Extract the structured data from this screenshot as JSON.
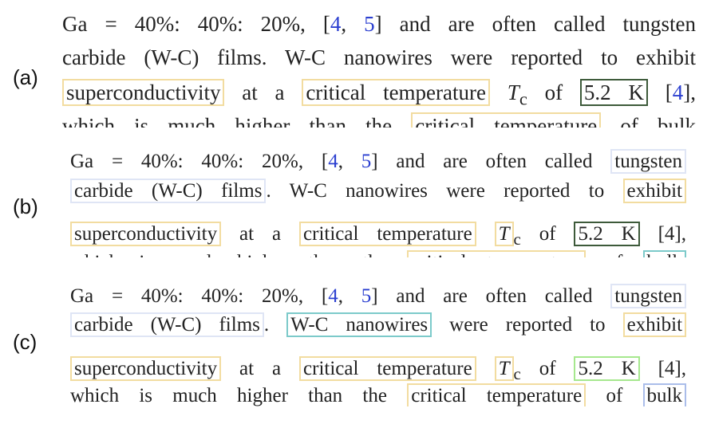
{
  "panels": [
    {
      "label": "(a)",
      "lines": [
        [
          {
            "text": "Ga = 40%: 40%: 20%, ["
          },
          {
            "text": "4",
            "color": "#2b3fd0"
          },
          {
            "text": ", "
          },
          {
            "text": "5",
            "color": "#2b3fd0"
          },
          {
            "text": "] and are often called tungsten"
          }
        ],
        [
          {
            "text": "carbide (W-C) films. W-C nanowires were reported to exhibit"
          }
        ],
        [
          {
            "text": "superconductivity",
            "box": "#f2dca0"
          },
          {
            "text": " at a "
          },
          {
            "text": "critical temperature",
            "box": "#f2dca0"
          },
          {
            "text": " "
          },
          {
            "text": "T",
            "italic": true
          },
          {
            "text": "c",
            "sub": true
          },
          {
            "text": " of "
          },
          {
            "text": "5.2 K",
            "box": "#3d5a3a"
          },
          {
            "text": " ["
          },
          {
            "text": "4",
            "color": "#2b3fd0"
          },
          {
            "text": "],"
          }
        ],
        [
          {
            "text": "which is much higher than the "
          },
          {
            "text": "critical temperature",
            "box": "#f2dca0"
          },
          {
            "text": " of bulk"
          }
        ]
      ]
    },
    {
      "label": "(b)",
      "lines": [
        [
          {
            "text": "Ga = 40%: 40%: 20%, ["
          },
          {
            "text": "4",
            "color": "#2b3fd0"
          },
          {
            "text": ", "
          },
          {
            "text": "5",
            "color": "#2b3fd0"
          },
          {
            "text": "] and are often called "
          },
          {
            "text": "tungsten",
            "box": "#dfe5f5"
          }
        ],
        [
          {
            "text": "carbide (W-C) films",
            "box": "#dfe5f5"
          },
          {
            "text": ". W-C nanowires were reported to "
          },
          {
            "text": "exhibit",
            "box": "#f2dca0"
          }
        ],
        [
          {
            "text": "superconductivity",
            "box": "#f2dca0"
          },
          {
            "text": " at a "
          },
          {
            "text": "critical temperature",
            "box": "#f2dca0"
          },
          {
            "text": " "
          },
          {
            "text": "T",
            "italic": true,
            "box": "#f2dca0"
          },
          {
            "text": "c",
            "sub": true
          },
          {
            "text": " of "
          },
          {
            "text": "5.2 K",
            "box": "#3d5a3a"
          },
          {
            "text": " [4],"
          }
        ],
        [
          {
            "text": "which is much higher than the "
          },
          {
            "text": "critical temperature",
            "box": "#f2dca0"
          },
          {
            "text": " of "
          },
          {
            "text": "bulk",
            "box": "#7ccaca"
          }
        ]
      ]
    },
    {
      "label": "(c)",
      "lines": [
        [
          {
            "text": "Ga = 40%: 40%: 20%, ["
          },
          {
            "text": "4",
            "color": "#2b3fd0"
          },
          {
            "text": ", "
          },
          {
            "text": "5",
            "color": "#2b3fd0"
          },
          {
            "text": "] and are often called "
          },
          {
            "text": "tungsten",
            "box": "#dfe5f5"
          }
        ],
        [
          {
            "text": "carbide (W-C) films",
            "box": "#dfe5f5"
          },
          {
            "text": ". "
          },
          {
            "text": "W-C nanowires",
            "box": "#7ccaca"
          },
          {
            "text": " were reported to "
          },
          {
            "text": "exhibit",
            "box": "#f2dca0"
          }
        ],
        [
          {
            "text": "superconductivity",
            "box": "#f2dca0"
          },
          {
            "text": " at a "
          },
          {
            "text": "critical temperature",
            "box": "#f2dca0"
          },
          {
            "text": " "
          },
          {
            "text": "T",
            "italic": true,
            "box": "#f2dca0"
          },
          {
            "text": "c",
            "sub": true
          },
          {
            "text": " of "
          },
          {
            "text": "5.2 K",
            "box": "#a6e88e"
          },
          {
            "text": " [4],"
          }
        ],
        [
          {
            "text": "which is much higher than the "
          },
          {
            "text": "critical temperature",
            "box": "#f2dca0"
          },
          {
            "text": " of "
          },
          {
            "text": "bulk",
            "box": "#aabdea"
          }
        ]
      ]
    }
  ]
}
